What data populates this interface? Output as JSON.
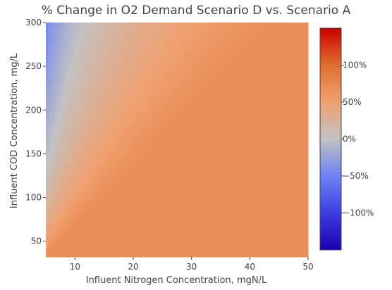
{
  "chart_data": {
    "type": "heatmap",
    "title": "% Change in O2 Demand Scenario D vs. Scenario A",
    "xlabel": "Influent Nitrogen Concentration, mgN/L",
    "ylabel": "Influent COD Concentration, mg/L",
    "xlim": [
      5,
      50
    ],
    "ylim": [
      32,
      300
    ],
    "x_ticks": [
      10,
      20,
      30,
      40,
      50
    ],
    "y_ticks": [
      50,
      100,
      150,
      200,
      250,
      300
    ],
    "colorbar": {
      "range": [
        -150,
        150
      ],
      "ticks": [
        {
          "value": -100,
          "label": "−100%"
        },
        {
          "value": -50,
          "label": "−50%"
        },
        {
          "value": 0,
          "label": "0%"
        },
        {
          "value": 50,
          "label": "50%"
        },
        {
          "value": 100,
          "label": "100%"
        }
      ],
      "colorscale": [
        "#1a00b0",
        "#3d3ee0",
        "#6b82f5",
        "#c2c2c2",
        "#f0a070",
        "#e07030",
        "#cc0000"
      ]
    },
    "surface": {
      "saturated_value": 68,
      "description_points": [
        {
          "x": 5,
          "y": 300,
          "value": -90
        },
        {
          "x": 5,
          "y": 150,
          "value": -50
        },
        {
          "x": 5,
          "y": 40,
          "value": 0
        },
        {
          "x": 20,
          "y": 140,
          "value": 0
        },
        {
          "x": 30,
          "y": 230,
          "value": 5
        },
        {
          "x": 50,
          "y": 300,
          "value": 45
        }
      ]
    },
    "grid": false
  }
}
